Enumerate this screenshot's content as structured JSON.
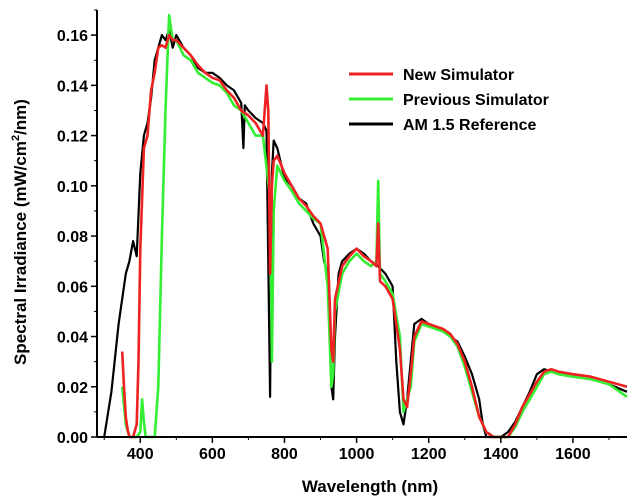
{
  "chart_data": {
    "type": "line",
    "title": "",
    "xlabel": "Wavelength (nm)",
    "ylabel_parts": [
      "Spectral Irradiance (mW/cm",
      "2",
      "/nm)"
    ],
    "xlim": [
      280,
      1750
    ],
    "ylim": [
      0,
      0.17
    ],
    "x_ticks": [
      400,
      600,
      800,
      1000,
      1200,
      1400,
      1600
    ],
    "x_tick_labels": [
      "400",
      "600",
      "800",
      "1000",
      "1200",
      "1400",
      "1600"
    ],
    "y_ticks": [
      0.0,
      0.02,
      0.04,
      0.06,
      0.08,
      0.1,
      0.12,
      0.14,
      0.16
    ],
    "y_tick_labels": [
      "0.00",
      "0.02",
      "0.04",
      "0.06",
      "0.08",
      "0.10",
      "0.12",
      "0.14",
      "0.16"
    ],
    "grid": false,
    "legend_position": "top-right",
    "series": [
      {
        "name": "AM 1.5 Reference",
        "color": "#000000",
        "x": [
          300,
          320,
          340,
          350,
          360,
          370,
          380,
          390,
          400,
          410,
          420,
          430,
          440,
          450,
          460,
          470,
          480,
          490,
          500,
          520,
          540,
          560,
          580,
          600,
          620,
          640,
          660,
          680,
          686,
          690,
          700,
          720,
          740,
          750,
          760,
          765,
          770,
          780,
          800,
          820,
          840,
          860,
          880,
          900,
          910,
          920,
          930,
          935,
          940,
          950,
          960,
          980,
          1000,
          1020,
          1040,
          1060,
          1080,
          1100,
          1110,
          1120,
          1130,
          1140,
          1150,
          1160,
          1180,
          1200,
          1220,
          1240,
          1260,
          1280,
          1300,
          1320,
          1340,
          1350,
          1360,
          1380,
          1400,
          1420,
          1440,
          1460,
          1480,
          1500,
          1520,
          1540,
          1560,
          1600,
          1650,
          1700,
          1750
        ],
        "y": [
          0.0,
          0.018,
          0.045,
          0.055,
          0.065,
          0.07,
          0.078,
          0.072,
          0.105,
          0.12,
          0.125,
          0.135,
          0.15,
          0.155,
          0.16,
          0.158,
          0.162,
          0.155,
          0.16,
          0.155,
          0.152,
          0.147,
          0.145,
          0.145,
          0.143,
          0.14,
          0.138,
          0.133,
          0.115,
          0.132,
          0.13,
          0.127,
          0.125,
          0.122,
          0.016,
          0.105,
          0.118,
          0.115,
          0.103,
          0.1,
          0.095,
          0.093,
          0.085,
          0.08,
          0.07,
          0.065,
          0.02,
          0.015,
          0.04,
          0.065,
          0.07,
          0.073,
          0.075,
          0.073,
          0.07,
          0.068,
          0.065,
          0.06,
          0.03,
          0.01,
          0.005,
          0.015,
          0.03,
          0.045,
          0.047,
          0.045,
          0.044,
          0.043,
          0.04,
          0.038,
          0.032,
          0.025,
          0.015,
          0.005,
          0.0,
          0.0,
          0.0,
          0.002,
          0.006,
          0.012,
          0.018,
          0.025,
          0.027,
          0.026,
          0.025,
          0.024,
          0.023,
          0.021,
          0.018
        ]
      },
      {
        "name": "Previous Simulator",
        "color": "#33ee33",
        "x": [
          350,
          360,
          370,
          380,
          390,
          400,
          405,
          410,
          415,
          420,
          440,
          450,
          460,
          470,
          480,
          490,
          500,
          520,
          540,
          560,
          580,
          600,
          620,
          640,
          660,
          680,
          700,
          720,
          740,
          760,
          765,
          770,
          780,
          800,
          820,
          840,
          860,
          880,
          900,
          920,
          930,
          935,
          940,
          960,
          980,
          1000,
          1020,
          1040,
          1055,
          1060,
          1065,
          1080,
          1100,
          1120,
          1130,
          1140,
          1150,
          1160,
          1180,
          1200,
          1220,
          1240,
          1260,
          1280,
          1300,
          1320,
          1340,
          1360,
          1380,
          1400,
          1420,
          1440,
          1460,
          1480,
          1500,
          1520,
          1540,
          1560,
          1600,
          1650,
          1700,
          1750
        ],
        "y": [
          0.02,
          0.005,
          0.0,
          0.0,
          0.0,
          0.002,
          0.015,
          0.006,
          0.0,
          0.0,
          0.0,
          0.02,
          0.08,
          0.13,
          0.168,
          0.158,
          0.158,
          0.152,
          0.15,
          0.145,
          0.143,
          0.141,
          0.14,
          0.137,
          0.132,
          0.13,
          0.125,
          0.12,
          0.12,
          0.095,
          0.03,
          0.09,
          0.108,
          0.102,
          0.098,
          0.093,
          0.09,
          0.087,
          0.085,
          0.06,
          0.02,
          0.025,
          0.05,
          0.065,
          0.07,
          0.073,
          0.07,
          0.068,
          0.07,
          0.102,
          0.065,
          0.062,
          0.057,
          0.04,
          0.01,
          0.015,
          0.02,
          0.038,
          0.045,
          0.044,
          0.043,
          0.042,
          0.04,
          0.036,
          0.028,
          0.018,
          0.008,
          0.002,
          0.0,
          0.0,
          0.0,
          0.004,
          0.01,
          0.015,
          0.02,
          0.025,
          0.026,
          0.025,
          0.024,
          0.023,
          0.021,
          0.016
        ]
      },
      {
        "name": "New Simulator",
        "color": "#ee2222",
        "x": [
          350,
          355,
          360,
          365,
          370,
          380,
          390,
          395,
          400,
          410,
          420,
          430,
          440,
          450,
          460,
          470,
          480,
          490,
          500,
          520,
          540,
          560,
          580,
          600,
          620,
          640,
          660,
          680,
          700,
          720,
          740,
          750,
          755,
          760,
          765,
          770,
          780,
          800,
          820,
          840,
          860,
          880,
          900,
          920,
          930,
          935,
          940,
          960,
          980,
          1000,
          1020,
          1040,
          1055,
          1060,
          1065,
          1080,
          1100,
          1120,
          1130,
          1140,
          1150,
          1160,
          1180,
          1200,
          1220,
          1240,
          1260,
          1280,
          1300,
          1320,
          1340,
          1360,
          1380,
          1400,
          1420,
          1440,
          1460,
          1480,
          1500,
          1520,
          1540,
          1560,
          1600,
          1650,
          1700,
          1750
        ],
        "y": [
          0.034,
          0.02,
          0.008,
          0.003,
          0.0,
          0.0,
          0.005,
          0.03,
          0.075,
          0.115,
          0.12,
          0.138,
          0.145,
          0.155,
          0.156,
          0.155,
          0.16,
          0.158,
          0.158,
          0.155,
          0.152,
          0.148,
          0.145,
          0.143,
          0.142,
          0.138,
          0.135,
          0.13,
          0.128,
          0.125,
          0.12,
          0.14,
          0.13,
          0.065,
          0.1,
          0.11,
          0.112,
          0.105,
          0.1,
          0.095,
          0.092,
          0.088,
          0.085,
          0.075,
          0.035,
          0.03,
          0.055,
          0.068,
          0.072,
          0.075,
          0.072,
          0.07,
          0.068,
          0.085,
          0.062,
          0.06,
          0.055,
          0.035,
          0.015,
          0.012,
          0.025,
          0.04,
          0.046,
          0.045,
          0.044,
          0.043,
          0.041,
          0.037,
          0.03,
          0.02,
          0.008,
          0.002,
          0.0,
          0.0,
          0.0,
          0.005,
          0.012,
          0.017,
          0.022,
          0.026,
          0.027,
          0.026,
          0.025,
          0.024,
          0.022,
          0.02
        ]
      }
    ],
    "legend_order": [
      "New Simulator",
      "Previous Simulator",
      "AM 1.5 Reference"
    ]
  }
}
